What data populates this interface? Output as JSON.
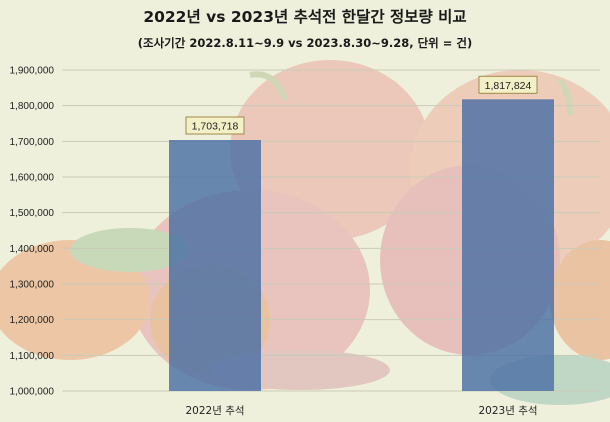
{
  "chart_data": {
    "type": "bar",
    "title": "2022년 vs 2023년 추석전 한달간 정보량 비교",
    "subtitle": "(조사기간 2022.8.11~9.9 vs 2023.8.30~9.28, 단위 = 건)",
    "categories": [
      "2022년 추석",
      "2023년 추석"
    ],
    "values": [
      1703718,
      1817824
    ],
    "data_labels": [
      "1,703,718",
      "1,817,824"
    ],
    "ylim": [
      1000000,
      1900000
    ],
    "yticks": [
      1000000,
      1100000,
      1200000,
      1300000,
      1400000,
      1500000,
      1600000,
      1700000,
      1800000,
      1900000
    ],
    "ytick_labels": [
      "1,000,000",
      "1,100,000",
      "1,200,000",
      "1,300,000",
      "1,400,000",
      "1,500,000",
      "1,600,000",
      "1,700,000",
      "1,800,000",
      "1,900,000"
    ],
    "grid": true,
    "legend": "none",
    "colors": {
      "bar": "#4a6fa5",
      "label_box_fill": "#f3efc6",
      "label_box_stroke": "#a08a4a",
      "grid": "#c9cbb8",
      "background": "#eef0dc"
    }
  }
}
